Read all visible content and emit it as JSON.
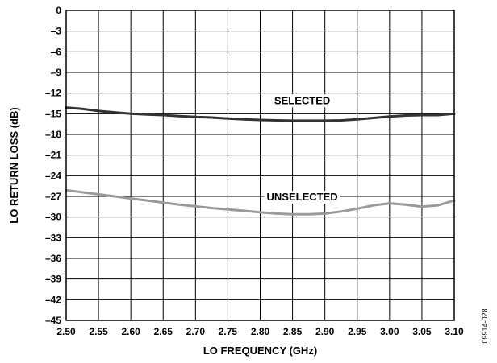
{
  "chart_data": {
    "type": "line",
    "xlabel": "LO FREQUENCY (GHz)",
    "ylabel": "LO RETURN LOSS (dB)",
    "xlim": [
      2.5,
      3.1
    ],
    "ylim": [
      -45,
      0
    ],
    "x_ticks": [
      2.5,
      2.55,
      2.6,
      2.65,
      2.7,
      2.75,
      2.8,
      2.85,
      2.9,
      2.95,
      3.0,
      3.05,
      3.1
    ],
    "x_tick_labels": [
      "2.50",
      "2.55",
      "2.60",
      "2.65",
      "2.70",
      "2.75",
      "2.80",
      "2.85",
      "2.90",
      "2.95",
      "3.00",
      "3.05",
      "3.10"
    ],
    "y_ticks": [
      0,
      -3,
      -6,
      -9,
      -12,
      -15,
      -18,
      -21,
      -24,
      -27,
      -30,
      -33,
      -36,
      -39,
      -42,
      -45
    ],
    "y_tick_labels": [
      "0",
      "–3",
      "–6",
      "–9",
      "–12",
      "–15",
      "–18",
      "–21",
      "–24",
      "–27",
      "–30",
      "–33",
      "–36",
      "–39",
      "–42",
      "–45"
    ],
    "grid": true,
    "series": [
      {
        "name": "SELECTED",
        "color": "#333333",
        "x": [
          2.5,
          2.525,
          2.55,
          2.575,
          2.6,
          2.625,
          2.65,
          2.675,
          2.7,
          2.725,
          2.75,
          2.775,
          2.8,
          2.825,
          2.85,
          2.875,
          2.9,
          2.925,
          2.95,
          2.975,
          3.0,
          3.025,
          3.05,
          3.075,
          3.1
        ],
        "values": [
          -14.1,
          -14.3,
          -14.6,
          -14.8,
          -15.0,
          -15.1,
          -15.2,
          -15.35,
          -15.45,
          -15.55,
          -15.7,
          -15.8,
          -15.9,
          -15.95,
          -16.0,
          -16.0,
          -16.0,
          -15.95,
          -15.8,
          -15.6,
          -15.4,
          -15.25,
          -15.2,
          -15.2,
          -15.0
        ]
      },
      {
        "name": "UNSELECTED",
        "color": "#9a9a9a",
        "x": [
          2.5,
          2.525,
          2.55,
          2.575,
          2.6,
          2.625,
          2.65,
          2.675,
          2.7,
          2.725,
          2.75,
          2.775,
          2.8,
          2.825,
          2.85,
          2.875,
          2.9,
          2.925,
          2.95,
          2.975,
          3.0,
          3.025,
          3.05,
          3.075,
          3.1
        ],
        "values": [
          -26.1,
          -26.4,
          -26.7,
          -27.0,
          -27.3,
          -27.6,
          -27.9,
          -28.2,
          -28.45,
          -28.7,
          -28.9,
          -29.1,
          -29.3,
          -29.5,
          -29.6,
          -29.6,
          -29.5,
          -29.2,
          -28.8,
          -28.3,
          -28.0,
          -28.2,
          -28.5,
          -28.3,
          -27.6
        ]
      }
    ],
    "annotations": [
      {
        "text": "SELECTED",
        "x": 2.865,
        "y": -13.6
      },
      {
        "text": "UNSELECTED",
        "x": 2.865,
        "y": -27.6
      }
    ],
    "figure_id": "09914-028"
  }
}
